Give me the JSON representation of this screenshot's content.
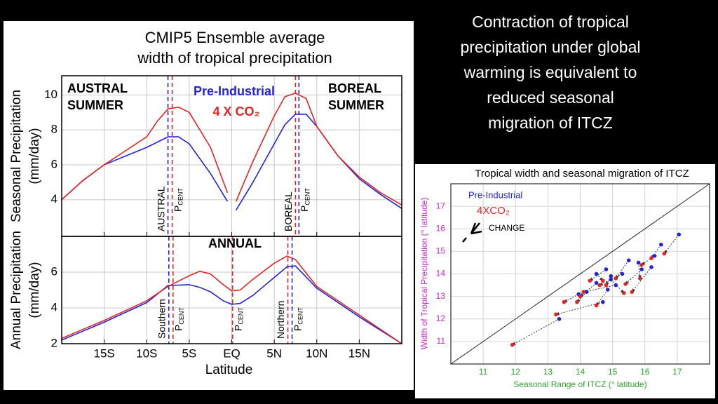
{
  "slide_text": [
    "Contraction of tropical",
    "precipitation under global",
    "warming is equivalent to",
    "reduced seasonal",
    "migration of ITCZ"
  ],
  "chart_data": [
    {
      "type": "line",
      "title": [
        "CMIP5 Ensemble average",
        "width of tropical precipitation"
      ],
      "ylabel": [
        "Seasonal Precipitation",
        "(mm/day)"
      ],
      "x": [
        -20,
        -17.5,
        -15,
        -12.5,
        -10,
        -8.75,
        -7.5,
        -6.25,
        -5,
        -2.5,
        -0.5,
        0,
        0.5,
        2.5,
        5,
        6.25,
        7.5,
        8.75,
        10,
        12.5,
        15,
        17.5,
        20
      ],
      "series": [
        {
          "name": "Pre-Industrial",
          "color": "#2323d6",
          "values": [
            4.0,
            5.1,
            6.0,
            6.5,
            7.0,
            7.3,
            7.6,
            7.6,
            7.2,
            5.5,
            3.9,
            null,
            3.4,
            5.0,
            7.2,
            8.3,
            8.9,
            8.9,
            8.2,
            6.5,
            5.2,
            4.3,
            3.5
          ],
          "p_cent": [
            -7.5,
            7.9
          ]
        },
        {
          "name": "4 X CO₂",
          "color": "#e02424",
          "values": [
            4.0,
            5.1,
            6.0,
            6.8,
            7.6,
            8.5,
            9.2,
            9.3,
            9.0,
            7.0,
            4.4,
            null,
            3.9,
            6.2,
            8.8,
            9.9,
            10.1,
            9.8,
            8.2,
            6.5,
            5.3,
            4.4,
            3.7
          ],
          "p_cent": [
            -7.0,
            7.5
          ]
        }
      ],
      "p_cent_labels": [
        "AUSTRAL",
        "BOREAL"
      ],
      "p_cent_symbol": "P",
      "p_cent_subscript": "CENT",
      "corner_labels": [
        [
          "AUSTRAL",
          "SUMMER"
        ],
        [
          "BOREAL",
          "SUMMER"
        ]
      ],
      "xlim": [
        -20,
        20
      ],
      "xticks": [
        -15,
        -10,
        -5,
        0,
        5,
        10,
        15
      ],
      "ylim": [
        1.9,
        11.1
      ],
      "yticks": [
        4,
        6,
        8,
        10
      ],
      "grid": true
    },
    {
      "type": "line",
      "panel_label": "ANNUAL",
      "ylabel": [
        "Annual Precipitation",
        "(mm/day)"
      ],
      "xlabel": "Latitude",
      "x": [
        -20,
        -15,
        -10,
        -7.5,
        -5,
        -3.75,
        -2.5,
        -1,
        0,
        1,
        2.5,
        5,
        6.5,
        7.5,
        10,
        15,
        20
      ],
      "series": [
        {
          "color": "#2323d6",
          "values": [
            2.2,
            3.2,
            4.3,
            5.25,
            5.3,
            5.15,
            4.9,
            4.4,
            4.2,
            4.25,
            4.7,
            5.7,
            6.3,
            6.35,
            5.1,
            3.5,
            2.0
          ],
          "p_cent": [
            -7.4,
            0.1,
            7.1
          ]
        },
        {
          "color": "#e02424",
          "values": [
            2.3,
            3.3,
            4.4,
            5.2,
            5.8,
            6.05,
            5.9,
            5.3,
            4.95,
            5.0,
            5.6,
            6.5,
            6.9,
            6.7,
            5.2,
            3.6,
            2.0
          ],
          "p_cent": [
            -6.9,
            0.1,
            6.6
          ]
        }
      ],
      "p_cent_labels": [
        "Southern",
        null,
        "Northern"
      ],
      "p_cent_symbol": "P",
      "p_cent_subscript": "CENT",
      "xlim": [
        -20,
        20
      ],
      "xticks": [
        {
          "value": -15,
          "label": "15S"
        },
        {
          "value": -10,
          "label": "10S"
        },
        {
          "value": -5,
          "label": "5S"
        },
        {
          "value": 0,
          "label": "EQ"
        },
        {
          "value": 5,
          "label": "5N"
        },
        {
          "value": 10,
          "label": "10N"
        },
        {
          "value": 15,
          "label": "15N"
        }
      ],
      "ylim": [
        2,
        8
      ],
      "yticks": [
        2,
        4,
        6
      ],
      "grid": true
    },
    {
      "type": "scatter",
      "title": "Tropical width and seasonal migration of ITCZ",
      "xlabel": "Seasonal Range of ITCZ (° latitude)",
      "ylabel": "Width of Tropical Precipitation (° latitude)",
      "xaxis_color": "#2aa52a",
      "yaxis_color": "#cc22cc",
      "series": [
        {
          "name": "Pre-Industrial",
          "color": "#2323d6",
          "x": [
            17.05,
            16.5,
            16.3,
            15.8,
            15.5,
            15.3,
            16.2,
            15.9,
            14.8,
            14.95,
            15.1,
            14.5,
            14.2,
            14.85,
            13.95,
            14.5,
            13.35,
            14.7,
            14.95
          ],
          "values": [
            15.75,
            15.3,
            14.8,
            14.5,
            14.6,
            14.0,
            14.3,
            14.2,
            14.2,
            13.9,
            13.5,
            13.6,
            13.2,
            13.3,
            13.1,
            14.0,
            12.0,
            12.75,
            13.75
          ]
        },
        {
          "name": "4XCO₂",
          "color": "#e02424",
          "x": [
            16.6,
            16.2,
            15.9,
            15.85,
            15.1,
            14.6,
            15.6,
            15.4,
            14.3,
            14.8,
            14.1,
            14.0,
            13.9,
            14.5,
            13.5,
            14.7,
            11.9,
            13.25,
            15.35
          ],
          "values": [
            14.9,
            14.7,
            14.4,
            13.8,
            13.8,
            13.5,
            13.2,
            13.55,
            13.7,
            13.5,
            13.2,
            13.0,
            12.75,
            12.6,
            12.75,
            13.7,
            10.85,
            12.2,
            13.15
          ]
        }
      ],
      "change_label": "CHANGE",
      "diagonal": true,
      "xlim": [
        10,
        18
      ],
      "xticks": [
        11,
        12,
        13,
        14,
        15,
        16,
        17
      ],
      "ylim": [
        10,
        18
      ],
      "yticks": [
        11,
        12,
        13,
        14,
        15,
        16,
        17
      ],
      "grid": true
    }
  ]
}
